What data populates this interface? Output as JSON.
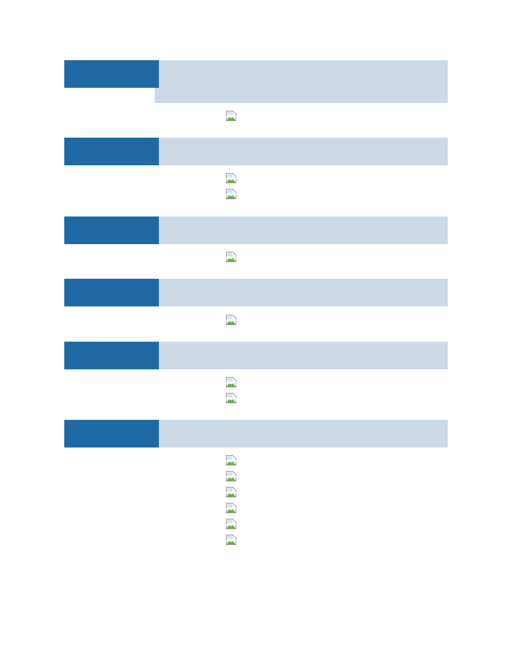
{
  "sections": [
    {
      "id": "section-1",
      "image_count": 1,
      "icon": "broken-image-icon"
    },
    {
      "id": "section-2",
      "image_count": 2,
      "icon": "broken-image-icon"
    },
    {
      "id": "section-3",
      "image_count": 1,
      "icon": "broken-image-icon"
    },
    {
      "id": "section-4",
      "image_count": 1,
      "icon": "broken-image-icon"
    },
    {
      "id": "section-5",
      "image_count": 2,
      "icon": "broken-image-icon"
    },
    {
      "id": "section-6",
      "image_count": 6,
      "icon": "broken-image-icon"
    }
  ],
  "colors": {
    "header_dark": "#1f6aa5",
    "header_light": "#cdd9e5"
  }
}
